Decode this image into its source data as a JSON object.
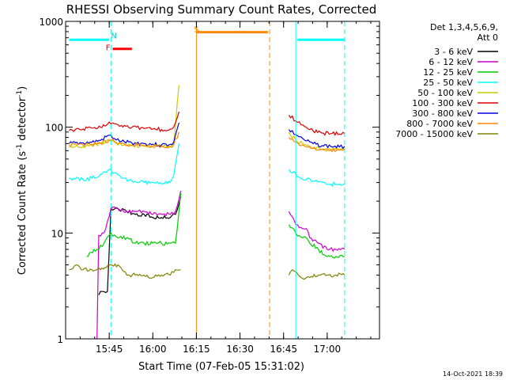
{
  "chart_data": {
    "type": "line",
    "title": "RHESSI Observing Summary Count Rates, Corrected",
    "xlabel": "Start Time (07-Feb-05 15:31:02)",
    "ylabel": "Corrected Count Rate (s",
    "ylabel_sup": "-1",
    "ylabel_end": " detector",
    "ylabel_sup2": "-1",
    "ylabel_close": ")",
    "y_scale": "log",
    "ylim": [
      1,
      1000
    ],
    "xlim_min": [
      15.5,
      17.3
    ],
    "x_ticks": [
      {
        "t": 15.75,
        "label": "15:45"
      },
      {
        "t": 16.0,
        "label": "16:00"
      },
      {
        "t": 16.25,
        "label": "16:15"
      },
      {
        "t": 16.5,
        "label": "16:30"
      },
      {
        "t": 16.75,
        "label": "16:45"
      },
      {
        "t": 17.0,
        "label": "17:00"
      }
    ],
    "y_ticks": [
      {
        "v": 1,
        "label": "1"
      },
      {
        "v": 10,
        "label": "10"
      },
      {
        "v": 100,
        "label": "100"
      },
      {
        "v": 1000,
        "label": "1000"
      }
    ],
    "legend": {
      "header1": "Det 1,3,4,5,6,9,",
      "header2": "Att 0",
      "placement": "right"
    },
    "series": [
      {
        "name": "3 - 6 keV",
        "color": "#000000",
        "x": [
          15.69,
          15.71,
          15.74,
          15.76,
          15.8,
          15.85,
          15.9,
          15.95,
          16.0,
          16.05,
          16.1,
          16.13,
          16.16
        ],
        "y": [
          2.6,
          2.8,
          2.8,
          17,
          17,
          16,
          15,
          15,
          14,
          14,
          14,
          15,
          22
        ]
      },
      {
        "name": "6 - 12 keV",
        "color": "#cc00cc",
        "x": [
          15.68,
          15.69,
          15.72,
          15.76,
          15.8,
          15.85,
          15.9,
          15.95,
          16.0,
          16.05,
          16.1,
          16.13,
          16.16,
          16.78,
          16.82,
          16.86,
          16.88,
          16.9,
          16.95,
          17.0,
          17.05,
          17.1
        ],
        "y": [
          1,
          9.5,
          10,
          17,
          17,
          16,
          16,
          16,
          15,
          15,
          15,
          16,
          25,
          16,
          12,
          11,
          11,
          9,
          8,
          7,
          7,
          7
        ]
      },
      {
        "name": "12 - 25 keV",
        "color": "#00cc00",
        "x": [
          15.62,
          15.68,
          15.72,
          15.76,
          15.8,
          15.85,
          15.9,
          15.95,
          16.0,
          16.05,
          16.1,
          16.13,
          16.16,
          16.78,
          16.82,
          16.86,
          16.88,
          16.9,
          16.95,
          17.0,
          17.05,
          17.1
        ],
        "y": [
          6,
          7,
          8,
          10,
          9,
          9,
          8,
          8,
          8,
          8,
          8,
          8,
          24,
          12,
          10,
          9,
          9,
          8,
          7,
          6,
          6,
          6
        ]
      },
      {
        "name": "25 - 50 keV",
        "color": "#00ffff",
        "x": [
          15.52,
          15.6,
          15.65,
          15.7,
          15.75,
          15.78,
          15.82,
          15.88,
          15.95,
          16.0,
          16.05,
          16.1,
          16.12,
          16.15,
          16.78,
          16.82,
          16.86,
          16.88,
          16.92,
          16.97,
          17.02,
          17.07,
          17.1
        ],
        "y": [
          33,
          32,
          33,
          36,
          40,
          37,
          33,
          31,
          30,
          30,
          29,
          30,
          35,
          70,
          40,
          36,
          32,
          32,
          31,
          30,
          29,
          29,
          29
        ]
      },
      {
        "name": "50 - 100 keV",
        "color": "#cccc00",
        "x": [
          15.52,
          15.6,
          15.65,
          15.7,
          15.75,
          15.78,
          15.82,
          15.88,
          15.95,
          16.0,
          16.05,
          16.1,
          16.12,
          16.15,
          16.78,
          16.82,
          16.86,
          16.88,
          16.92,
          16.97,
          17.02,
          17.07,
          17.1
        ],
        "y": [
          65,
          66,
          67,
          70,
          75,
          72,
          68,
          67,
          66,
          66,
          66,
          66,
          70,
          250,
          90,
          75,
          70,
          68,
          64,
          62,
          61,
          61,
          62
        ]
      },
      {
        "name": "100 - 300 keV",
        "color": "#dd0000",
        "x": [
          15.52,
          15.6,
          15.65,
          15.7,
          15.75,
          15.78,
          15.82,
          15.88,
          15.95,
          16.0,
          16.05,
          16.1,
          16.12,
          16.15,
          16.78,
          16.82,
          16.86,
          16.88,
          16.92,
          16.97,
          17.02,
          17.07,
          17.1
        ],
        "y": [
          93,
          96,
          98,
          100,
          112,
          108,
          104,
          100,
          97,
          96,
          95,
          96,
          100,
          140,
          130,
          115,
          105,
          100,
          92,
          88,
          87,
          86,
          87
        ]
      },
      {
        "name": "300 - 800 keV",
        "color": "#0000dd",
        "x": [
          15.52,
          15.6,
          15.65,
          15.7,
          15.75,
          15.78,
          15.82,
          15.88,
          15.95,
          16.0,
          16.05,
          16.1,
          16.12,
          16.15,
          16.78,
          16.82,
          16.86,
          16.88,
          16.92,
          16.97,
          17.02,
          17.07,
          17.1
        ],
        "y": [
          70,
          71,
          72,
          75,
          84,
          78,
          73,
          71,
          70,
          69,
          68,
          69,
          72,
          110,
          95,
          85,
          78,
          74,
          70,
          67,
          66,
          65,
          66
        ]
      },
      {
        "name": "800 - 7000 keV",
        "color": "#ff8800",
        "x": [
          15.52,
          15.6,
          15.65,
          15.7,
          15.75,
          15.78,
          15.82,
          15.88,
          15.95,
          16.0,
          16.05,
          16.1,
          16.12,
          16.15,
          16.78,
          16.82,
          16.86,
          16.88,
          16.92,
          16.97,
          17.02,
          17.07,
          17.1
        ],
        "y": [
          68,
          68,
          69,
          71,
          76,
          73,
          70,
          68,
          67,
          66,
          66,
          66,
          68,
          90,
          80,
          72,
          68,
          65,
          63,
          62,
          61,
          61,
          62
        ]
      },
      {
        "name": "7000 - 15000 keV",
        "color": "#808000",
        "x": [
          15.52,
          15.56,
          15.6,
          15.65,
          15.7,
          15.75,
          15.8,
          15.85,
          15.9,
          15.95,
          16.0,
          16.05,
          16.1,
          16.13,
          16.16,
          16.78,
          16.8,
          16.85,
          16.9,
          16.95,
          17.0,
          17.05,
          17.1
        ],
        "y": [
          4.5,
          5,
          4.5,
          4.5,
          4.5,
          5,
          5,
          4,
          4,
          4,
          3.8,
          4,
          4,
          4.5,
          4.5,
          4,
          4.5,
          3.8,
          3.8,
          4,
          4,
          4,
          4
        ]
      }
    ],
    "annotations": [
      {
        "label": "N",
        "color": "#00cccc",
        "x": 15.76,
        "y": 690
      },
      {
        "label": "F",
        "color": "#dd0000",
        "x": 15.73,
        "y": 535
      },
      {
        "label": "S",
        "color": "#ff8800",
        "x": 16.235,
        "y": 790
      }
    ],
    "bands": [
      {
        "color": "#00ffff",
        "x1": 15.52,
        "x2": 15.75,
        "y": 670
      },
      {
        "color": "#00ffff",
        "x1": 16.83,
        "x2": 17.1,
        "y": 670
      },
      {
        "color": "#ff0000",
        "x1": 15.77,
        "x2": 15.88,
        "y": 550
      },
      {
        "color": "#ff8800",
        "x1": 16.25,
        "x2": 16.66,
        "y": 790
      }
    ],
    "vlines": [
      {
        "color": "#00ffff",
        "x": 15.76,
        "dash": true
      },
      {
        "color": "#ff8800",
        "x": 16.25,
        "dash": false
      },
      {
        "color": "#ff8800",
        "x": 16.67,
        "dash": true
      },
      {
        "color": "#00ffff",
        "x": 16.82,
        "dash": false
      },
      {
        "color": "#00ffff",
        "x": 17.1,
        "dash": true
      }
    ],
    "timestamp": "14-Oct-2021 18:39"
  }
}
